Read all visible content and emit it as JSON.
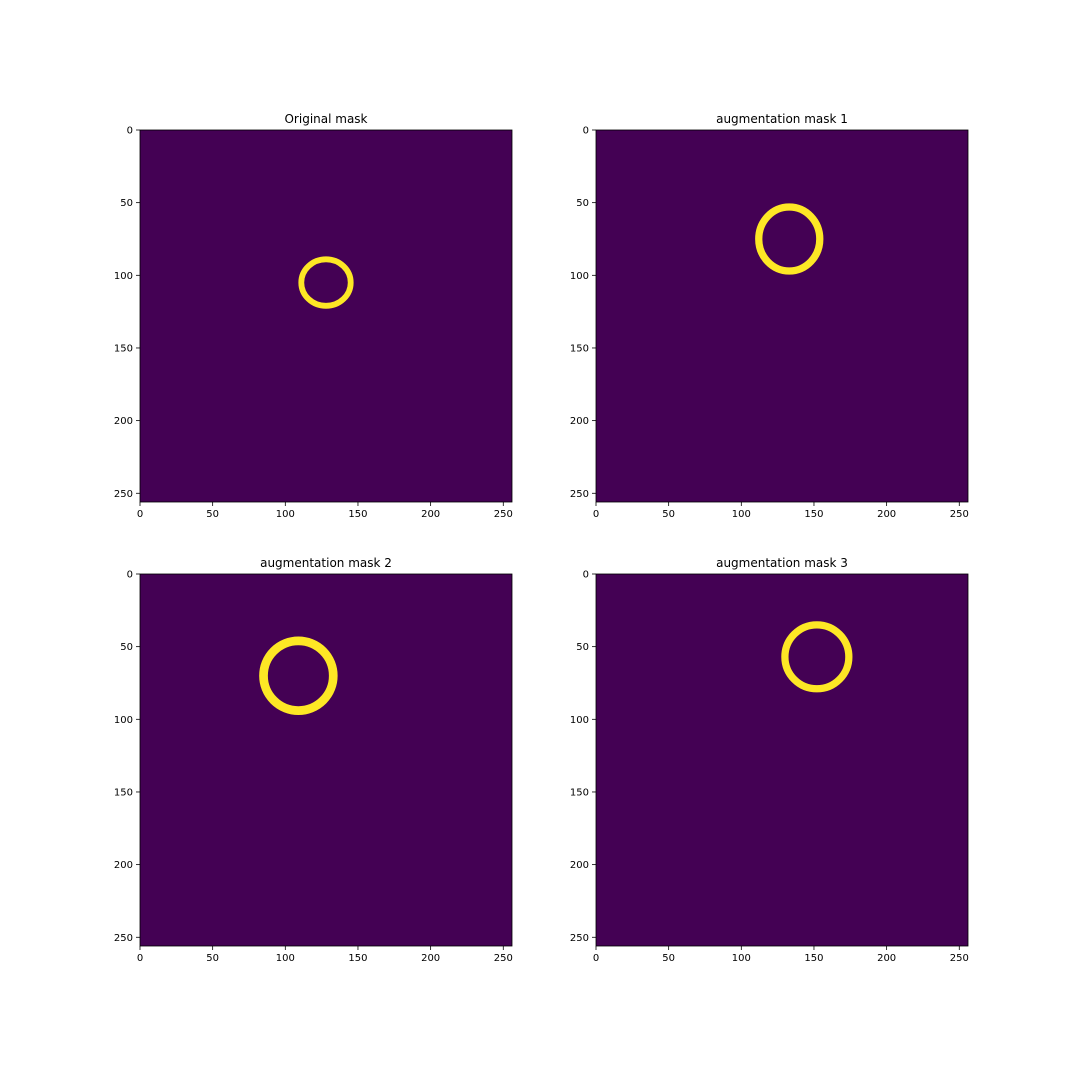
{
  "figure": {
    "background": "#ffffff",
    "colormap": "viridis",
    "mask_off_color": "#440154",
    "mask_on_color": "#fde725"
  },
  "chart_data": [
    {
      "type": "heatmap",
      "title": "Original mask",
      "image_size": [
        256,
        256
      ],
      "xlim": [
        0,
        256
      ],
      "ylim": [
        256,
        0
      ],
      "xticks": [
        0,
        50,
        100,
        150,
        200,
        250
      ],
      "yticks": [
        0,
        50,
        100,
        150,
        200,
        250
      ],
      "xlabel": "",
      "ylabel": "",
      "ring": {
        "center_x": 128,
        "center_y": 105,
        "radius_x": 17,
        "radius_y": 16,
        "thickness": 4
      }
    },
    {
      "type": "heatmap",
      "title": "augmentation mask 1",
      "image_size": [
        256,
        256
      ],
      "xlim": [
        0,
        256
      ],
      "ylim": [
        256,
        0
      ],
      "xticks": [
        0,
        50,
        100,
        150,
        200,
        250
      ],
      "yticks": [
        0,
        50,
        100,
        150,
        200,
        250
      ],
      "xlabel": "",
      "ylabel": "",
      "ring": {
        "center_x": 133,
        "center_y": 75,
        "radius_x": 21,
        "radius_y": 22,
        "thickness": 5
      }
    },
    {
      "type": "heatmap",
      "title": "augmentation mask 2",
      "image_size": [
        256,
        256
      ],
      "xlim": [
        0,
        256
      ],
      "ylim": [
        256,
        0
      ],
      "xticks": [
        0,
        50,
        100,
        150,
        200,
        250
      ],
      "yticks": [
        0,
        50,
        100,
        150,
        200,
        250
      ],
      "xlabel": "",
      "ylabel": "",
      "ring": {
        "center_x": 109,
        "center_y": 70,
        "radius_x": 24,
        "radius_y": 24,
        "thickness": 6
      }
    },
    {
      "type": "heatmap",
      "title": "augmentation mask 3",
      "image_size": [
        256,
        256
      ],
      "xlim": [
        0,
        256
      ],
      "ylim": [
        256,
        0
      ],
      "xticks": [
        0,
        50,
        100,
        150,
        200,
        250
      ],
      "yticks": [
        0,
        50,
        100,
        150,
        200,
        250
      ],
      "xlabel": "",
      "ylabel": "",
      "ring": {
        "center_x": 152,
        "center_y": 57,
        "radius_x": 22,
        "radius_y": 22,
        "thickness": 5
      }
    }
  ]
}
